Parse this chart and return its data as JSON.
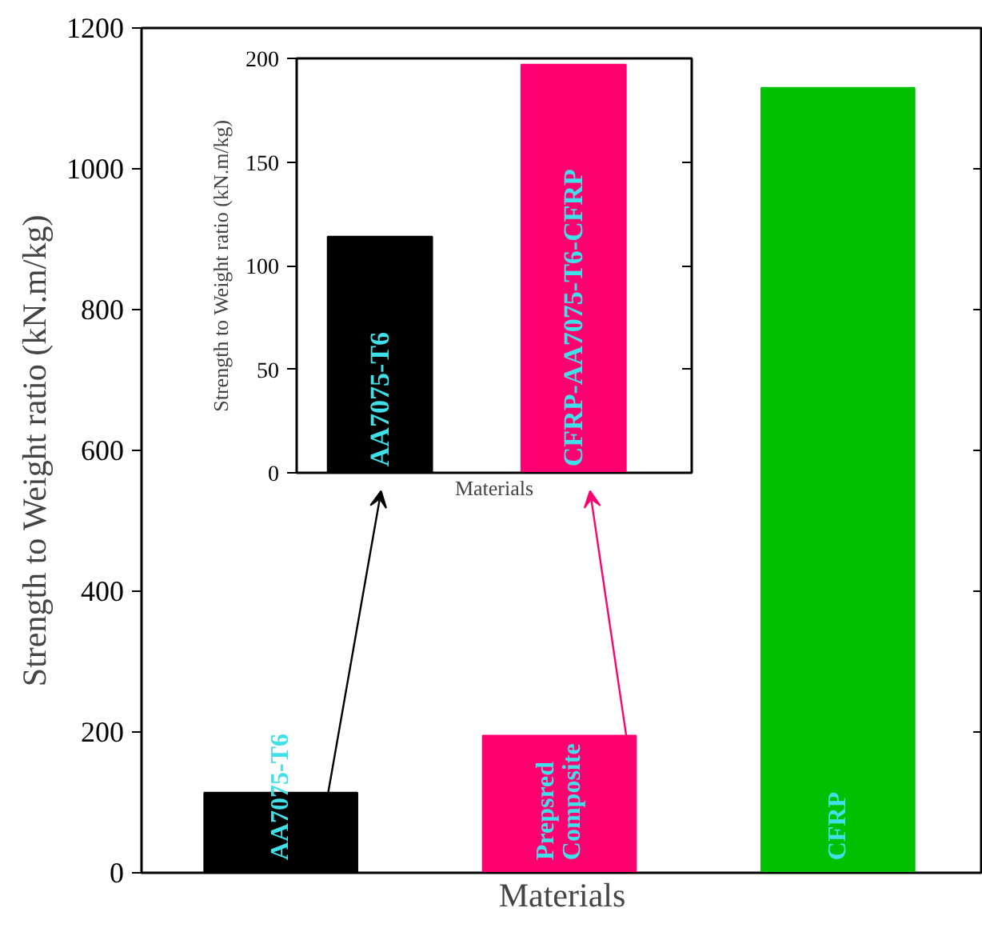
{
  "chart_data": [
    {
      "type": "bar",
      "categories": [
        "AA7075-T6",
        "Prepsred Composite",
        "CFRP"
      ],
      "values": [
        114,
        195,
        1115
      ],
      "colors": [
        "#000000",
        "#ff0070",
        "#00c000"
      ],
      "xlabel": "Materials",
      "ylabel": "Strength to Weight ratio (kN.m/kg)",
      "ylim": [
        0,
        1200
      ],
      "yticks": [
        0,
        200,
        400,
        600,
        800,
        1000,
        1200
      ],
      "tick_labels": "y"
    },
    {
      "type": "bar",
      "categories": [
        "AA7075-T6",
        "CFRP-AA7075-T6-CFRP"
      ],
      "values": [
        114,
        197
      ],
      "colors": [
        "#000000",
        "#ff0070"
      ],
      "xlabel": "Materials",
      "ylabel": "Strength to Weight ratio (kN.m/kg)",
      "ylim": [
        0,
        200
      ],
      "yticks": [
        0,
        50,
        100,
        150,
        200
      ],
      "tick_labels": "y"
    }
  ]
}
